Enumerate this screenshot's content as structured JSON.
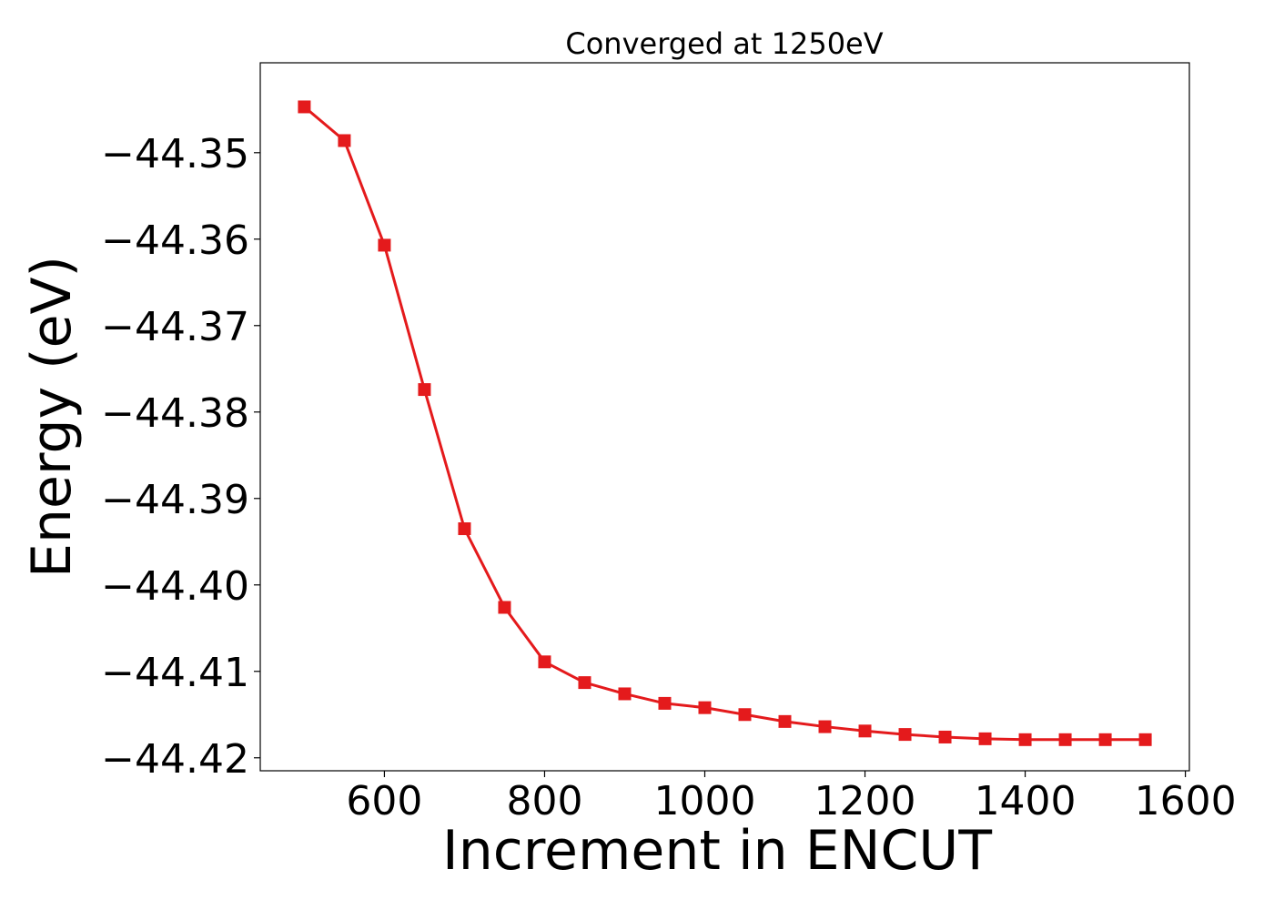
{
  "chart_data": {
    "type": "line",
    "title": "Converged at 1250eV",
    "xlabel": "Increment in ENCUT",
    "ylabel": "Energy (eV)",
    "xlim": [
      445,
      1605
    ],
    "ylim": [
      -44.4215,
      -44.3396
    ],
    "x_ticks": [
      600,
      800,
      1000,
      1200,
      1400,
      1600
    ],
    "x_tick_labels": [
      "600",
      "800",
      "1000",
      "1200",
      "1400",
      "1600"
    ],
    "y_ticks": [
      -44.35,
      -44.36,
      -44.37,
      -44.38,
      -44.39,
      -44.4,
      -44.41,
      -44.42
    ],
    "y_tick_labels": [
      "−44.35",
      "−44.36",
      "−44.37",
      "−44.38",
      "−44.39",
      "−44.40",
      "−44.41",
      "−44.42"
    ],
    "grid": false,
    "series": [
      {
        "color": "#e41a1c",
        "marker": "square",
        "x": [
          500,
          550,
          600,
          650,
          700,
          750,
          800,
          850,
          900,
          950,
          1000,
          1050,
          1100,
          1150,
          1200,
          1250,
          1300,
          1350,
          1400,
          1450,
          1500,
          1550
        ],
        "y": [
          -44.3447,
          -44.3486,
          -44.3607,
          -44.3774,
          -44.3935,
          -44.4026,
          -44.4089,
          -44.4113,
          -44.4126,
          -44.4137,
          -44.4142,
          -44.415,
          -44.4158,
          -44.4164,
          -44.4169,
          -44.4173,
          -44.4176,
          -44.4178,
          -44.4179,
          -44.4179,
          -44.4179,
          -44.4179
        ]
      }
    ]
  }
}
